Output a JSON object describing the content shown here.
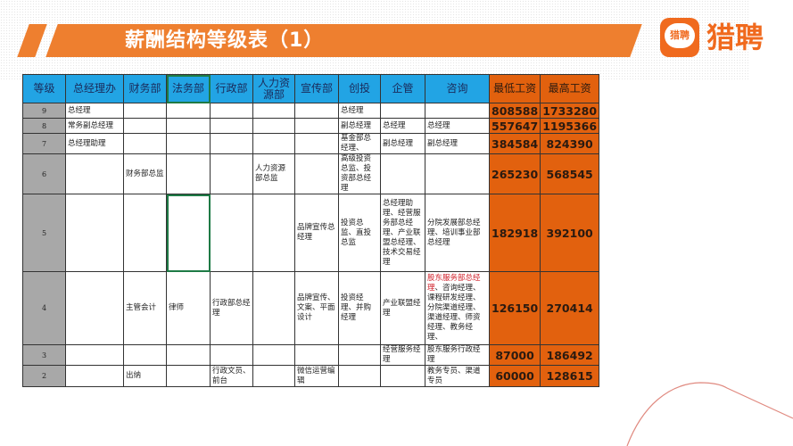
{
  "title": "薪酬结构等级表（1）",
  "logo": {
    "badge": "猎聘",
    "text": "猎聘"
  },
  "colors": {
    "banner": "#ee7f2f",
    "header": "#22a4e4",
    "grade": "#a8a8a8",
    "salary": "#e2610e",
    "highlight": "#d0202a"
  },
  "table": {
    "headers": [
      "等级",
      "总经理办",
      "财务部",
      "法务部",
      "行政部",
      "人力资源部",
      "宣传部",
      "创投",
      "企管",
      "咨询",
      "最低工资",
      "最高工资"
    ],
    "rows": [
      {
        "grade": "9",
        "cells": [
          "总经理",
          "",
          "",
          "",
          "",
          "",
          "总经理",
          "",
          "",
          ""
        ],
        "min": "808588",
        "max": "1733280"
      },
      {
        "grade": "8",
        "cells": [
          "常务副总经理",
          "",
          "",
          "",
          "",
          "",
          "副总经理",
          "总经理",
          "总经理",
          ""
        ],
        "min": "557647",
        "max": "1195366"
      },
      {
        "grade": "7",
        "cells": [
          "总经理助理",
          "",
          "",
          "",
          "",
          "",
          "基金部总经理、",
          "副总经理",
          "副总经理",
          ""
        ],
        "min": "384584",
        "max": "824390"
      },
      {
        "grade": "6",
        "cells": [
          "",
          "财务部总监",
          "",
          "",
          "人力资源部总监",
          "",
          "高级投资总监、投资部总经理",
          "",
          "",
          ""
        ],
        "min": "265230",
        "max": "568545"
      },
      {
        "grade": "5",
        "cells": [
          "",
          "",
          "",
          "",
          "",
          "品牌宣传总经理",
          "投资总监、直投总监",
          "总经理助理、经营服务部总经理、产业联盟总经理、技术交易经理",
          "分院发展部总经理、培训事业部总经理",
          ""
        ],
        "min": "182918",
        "max": "392100"
      },
      {
        "grade": "4",
        "cells": [
          "",
          "主管会计",
          "律师",
          "行政部总经理",
          "",
          "品牌宣传、文案、平面设计",
          "投资经理、并购经理",
          "产业联盟经理",
          "",
          ""
        ],
        "consult_red": "股东服务部总经理",
        "consult_rest": "、咨询经理、课程研发经理、分院渠道经理、渠道经理、师资经理、教务经理、",
        "min": "126150",
        "max": "270414"
      },
      {
        "grade": "3",
        "cells": [
          "",
          "",
          "",
          "",
          "",
          "",
          "",
          "经营服务经理",
          "股东服务行政经理",
          ""
        ],
        "min": "87000",
        "max": "186492"
      },
      {
        "grade": "2",
        "cells": [
          "",
          "出纳",
          "",
          "行政文员、前台",
          "",
          "微信运营编辑",
          "",
          "",
          "教务专员、渠道专员",
          ""
        ],
        "min": "60000",
        "max": "128615"
      }
    ]
  }
}
